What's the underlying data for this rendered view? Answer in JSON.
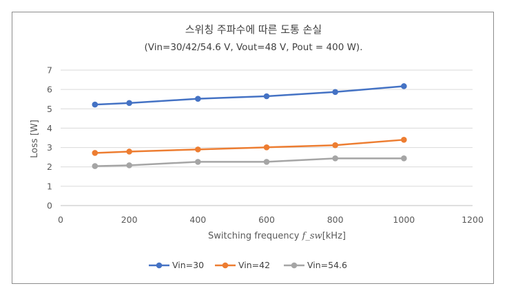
{
  "chart_data": {
    "type": "scatter",
    "mode": "lines+markers",
    "title": "스위칭 주파수에 따른 도통 손실",
    "subtitle": "(Vin=30/42/54.6 V, Vout=48 V, Pout = 400 W).",
    "xlabel_prefix": "Switching frequency ",
    "xlabel_italic": "f_sw",
    "xlabel_suffix": "[kHz]",
    "ylabel": "Loss [W]",
    "xlim": [
      0,
      1200
    ],
    "ylim": [
      0,
      7
    ],
    "xticks": [
      0,
      200,
      400,
      600,
      800,
      1000,
      1200
    ],
    "yticks": [
      0,
      1,
      2,
      3,
      4,
      5,
      6,
      7
    ],
    "grid": true,
    "legend_position": "bottom",
    "x": [
      100,
      200,
      400,
      600,
      800,
      1000
    ],
    "series": [
      {
        "name": "Vin=30",
        "color": "#4472C4",
        "values": [
          5.22,
          5.3,
          5.52,
          5.65,
          5.87,
          6.17
        ]
      },
      {
        "name": "Vin=42",
        "color": "#ED7D31",
        "values": [
          2.72,
          2.79,
          2.9,
          3.01,
          3.12,
          3.4
        ]
      },
      {
        "name": "Vin=54.6",
        "color": "#A5A5A5",
        "values": [
          2.04,
          2.08,
          2.26,
          2.26,
          2.44,
          2.44
        ]
      }
    ]
  }
}
